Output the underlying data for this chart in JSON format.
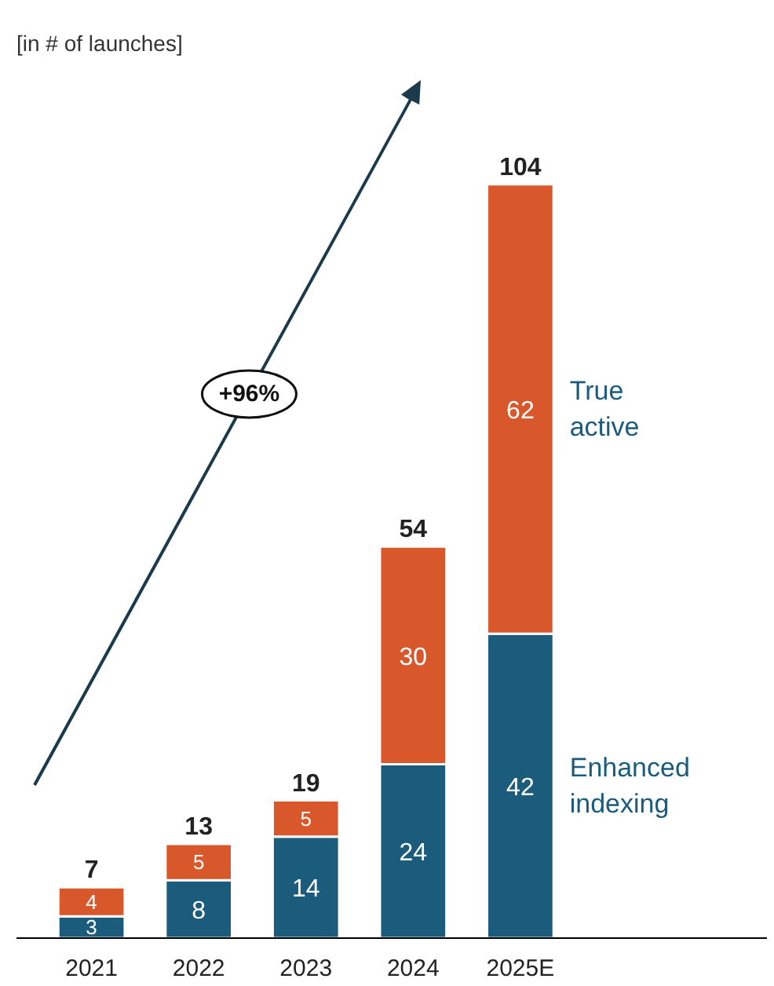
{
  "chart_data": {
    "type": "bar",
    "subtitle": "[in # of launches]",
    "categories": [
      "2021",
      "2022",
      "2023",
      "2024",
      "2025E"
    ],
    "stacked": true,
    "series": [
      {
        "name": "Enhanced indexing",
        "color": "#1b5b7c",
        "values": [
          3,
          8,
          14,
          24,
          42
        ]
      },
      {
        "name": "True active",
        "color": "#d9582b",
        "values": [
          4,
          5,
          5,
          30,
          62
        ]
      }
    ],
    "data_labels": true,
    "totals": [
      "7",
      "13",
      "19",
      "54",
      "104"
    ],
    "annotations": [
      "+96%"
    ],
    "legend": "right",
    "grid": false
  }
}
